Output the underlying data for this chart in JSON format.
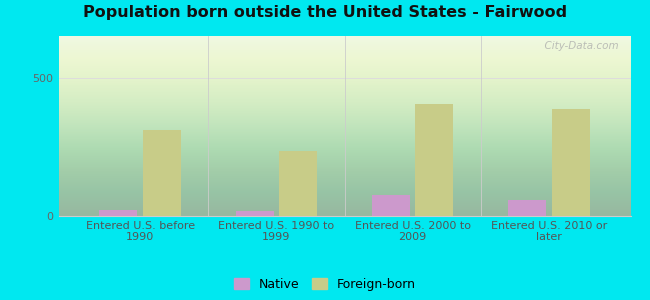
{
  "title": "Population born outside the United States - Fairwood",
  "categories": [
    "Entered U.S. before\n1990",
    "Entered U.S. 1990 to\n1999",
    "Entered U.S. 2000 to\n2009",
    "Entered U.S. 2010 or\nlater"
  ],
  "native_values": [
    22,
    18,
    75,
    58
  ],
  "foreign_values": [
    310,
    235,
    405,
    385
  ],
  "native_color": "#cc99cc",
  "foreign_color": "#c8cc88",
  "outer_background": "#00e8f0",
  "ylim": [
    0,
    650
  ],
  "yticks": [
    0,
    500
  ],
  "bar_width": 0.28,
  "watermark": "  City-Data.com",
  "title_fontsize": 11.5,
  "tick_fontsize": 8,
  "legend_labels": [
    "Native",
    "Foreign-born"
  ],
  "gradient_top": "#d4eec8",
  "gradient_bottom": "#ffffff"
}
